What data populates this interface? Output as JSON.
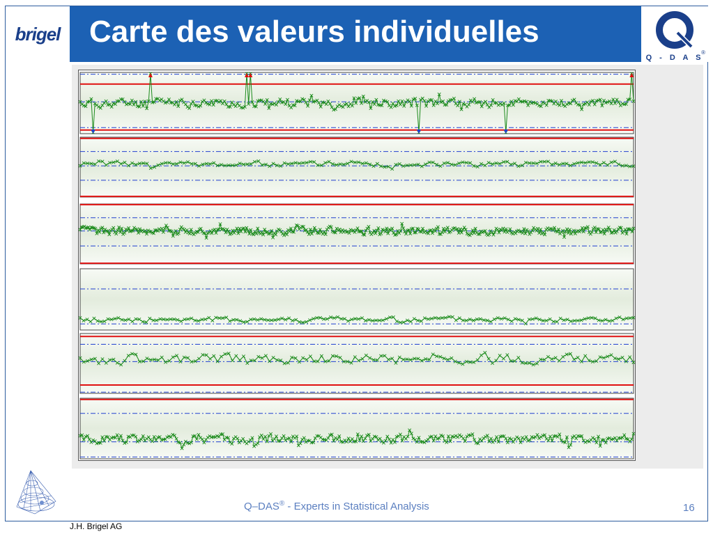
{
  "header": {
    "company_logo": "brigel",
    "title": "Carte des valeurs individuelles",
    "vendor_logo_text": "Q - D A S",
    "vendor_logo_mark": "®"
  },
  "footer": {
    "tagline_prefix": "Q–DAS",
    "tagline_reg": "®",
    "tagline_suffix": " - Experts in Statistical Analysis",
    "page_number": "16",
    "author": "J.H. Brigel AG"
  },
  "colors": {
    "title_bar": "#1c61b4",
    "data_line": "#1a8a1a",
    "limit_red": "#e01010",
    "dashdot_blue": "#2040d0",
    "frame_border": "#2c5c9e"
  },
  "chart_data": [
    {
      "type": "line",
      "name": "chart-1",
      "marker": "x",
      "n_points": 300,
      "ylim": [
        0,
        100
      ],
      "red_limits": [
        81,
        6
      ],
      "blue_dashdot": [
        97,
        52,
        10
      ],
      "center": 50,
      "noise": 10,
      "seed": 11,
      "violations_up": [
        38,
        90,
        92,
        298
      ],
      "violations_down": [
        7,
        183,
        230
      ]
    },
    {
      "type": "line",
      "name": "chart-2",
      "marker": "x",
      "n_points": 150,
      "ylim": [
        0,
        100
      ],
      "red_limits": [
        98,
        1
      ],
      "blue_dashdot": [
        76,
        52,
        28
      ],
      "center": 55,
      "noise": 6,
      "seed": 23,
      "violations_up": [],
      "violations_down": []
    },
    {
      "type": "line",
      "name": "chart-3",
      "marker": "x",
      "n_points": 400,
      "ylim": [
        0,
        100
      ],
      "red_limits": [
        99,
        1
      ],
      "blue_dashdot": [
        77,
        55,
        30
      ],
      "center": 55,
      "noise": 9,
      "seed": 37,
      "violations_up": [],
      "violations_down": []
    },
    {
      "type": "line",
      "name": "chart-4",
      "marker": "x",
      "n_points": 160,
      "ylim": [
        0,
        100
      ],
      "red_limits": [],
      "blue_dashdot": [
        67,
        10
      ],
      "center": 17,
      "noise": 6,
      "seed": 41,
      "violations_up": [],
      "violations_down": []
    },
    {
      "type": "line",
      "name": "chart-5",
      "marker": "x",
      "n_points": 150,
      "ylim": [
        0,
        100
      ],
      "red_limits": [
        95,
        14
      ],
      "blue_dashdot": [
        82,
        53,
        2
      ],
      "center": 57,
      "noise": 11,
      "seed": 53,
      "violations_up": [],
      "violations_down": []
    },
    {
      "type": "line",
      "name": "chart-6",
      "marker": "x",
      "n_points": 300,
      "ylim": [
        0,
        100
      ],
      "red_limits": [
        98
      ],
      "blue_dashdot": [
        75,
        28,
        3
      ],
      "center": 33,
      "noise": 10,
      "seed": 67,
      "violations_up": [],
      "violations_down": []
    }
  ]
}
